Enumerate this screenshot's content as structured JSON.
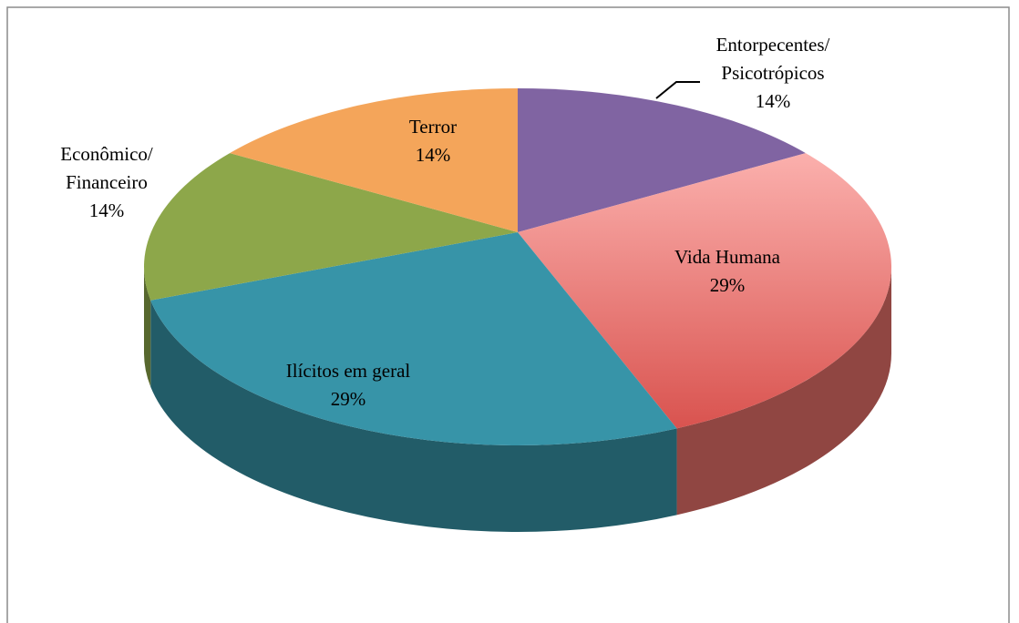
{
  "chart_data": {
    "type": "pie3d",
    "categories": [
      "Entorpecentes/\nPsicotrópicos",
      "Vida Humana",
      "Ilícitos em geral",
      "Econômico/\nFinanceiro",
      "Terror"
    ],
    "values": [
      14,
      29,
      29,
      14,
      14
    ],
    "value_labels": [
      "14%",
      "29%",
      "29%",
      "14%",
      "14%"
    ],
    "colors": [
      "#8064a2",
      "#e8716b",
      "#3794a8",
      "#8da74a",
      "#f4a55a"
    ]
  }
}
